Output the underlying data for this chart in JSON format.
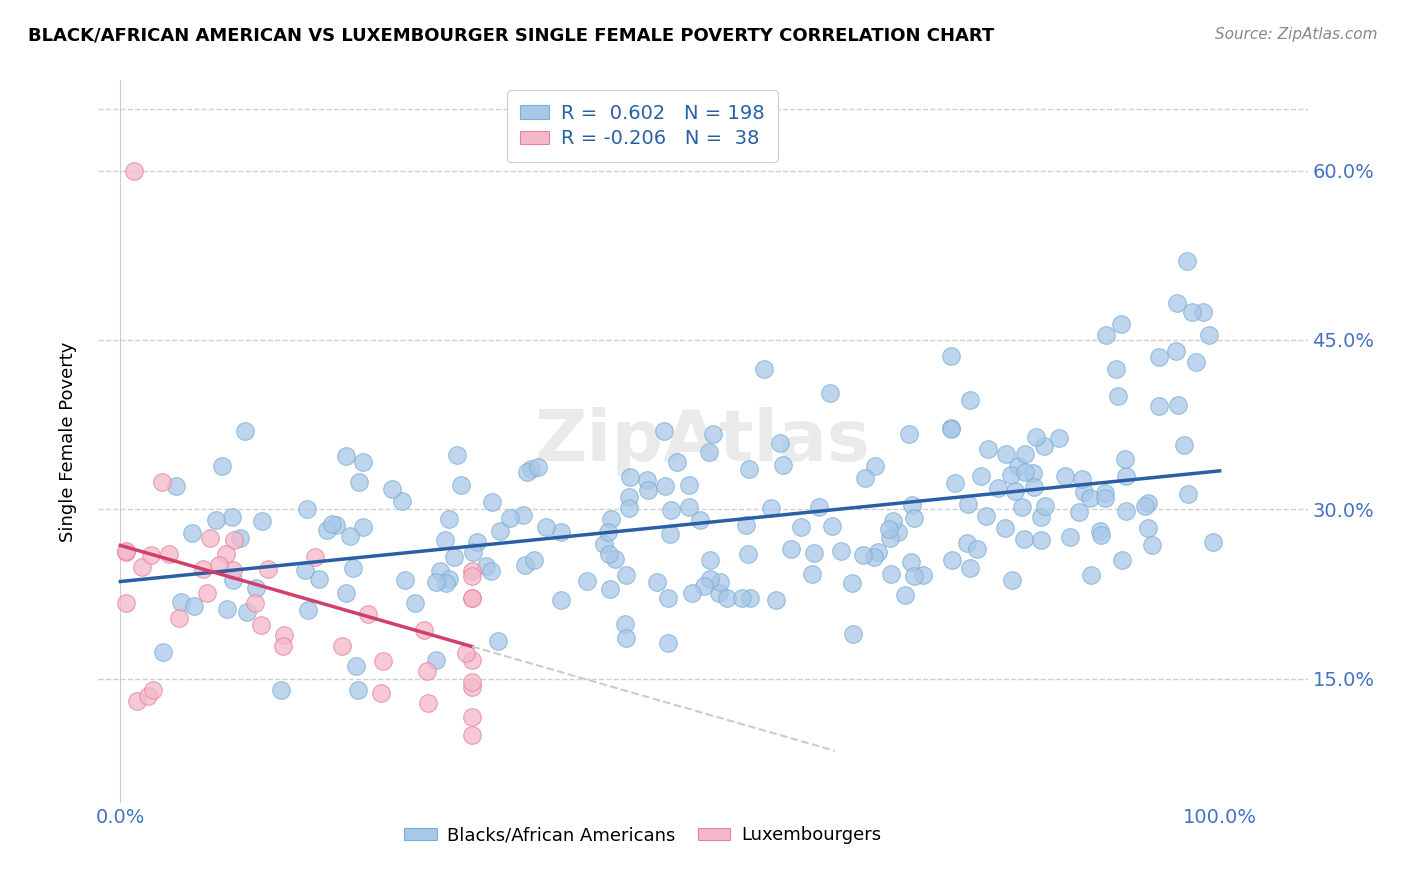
{
  "title": "BLACK/AFRICAN AMERICAN VS LUXEMBOURGER SINGLE FEMALE POVERTY CORRELATION CHART",
  "source": "Source: ZipAtlas.com",
  "ylabel": "Single Female Poverty",
  "blue_color": "#a8c8e8",
  "blue_edge_color": "#7aafd4",
  "pink_color": "#f4b8c8",
  "pink_edge_color": "#e880a0",
  "blue_line_color": "#2b5fa5",
  "pink_line_color": "#d0406a",
  "dash_line_color": "#cccccc",
  "watermark": "ZipAtlas",
  "blue_R": 0.602,
  "blue_N": 198,
  "pink_R": -0.206,
  "pink_N": 38,
  "blue_intercept": 0.236,
  "blue_slope": 0.098,
  "pink_intercept": 0.268,
  "pink_slope": -0.28,
  "yticks": [
    0.15,
    0.3,
    0.45,
    0.6
  ],
  "xticks": [
    0.0,
    0.1,
    0.2,
    0.3,
    0.4,
    0.5,
    0.6,
    0.7,
    0.8,
    0.9,
    1.0
  ],
  "xlim": [
    -0.02,
    1.08
  ],
  "ylim": [
    0.04,
    0.68
  ],
  "yaxis_right_labels": true,
  "dot_size": 160
}
